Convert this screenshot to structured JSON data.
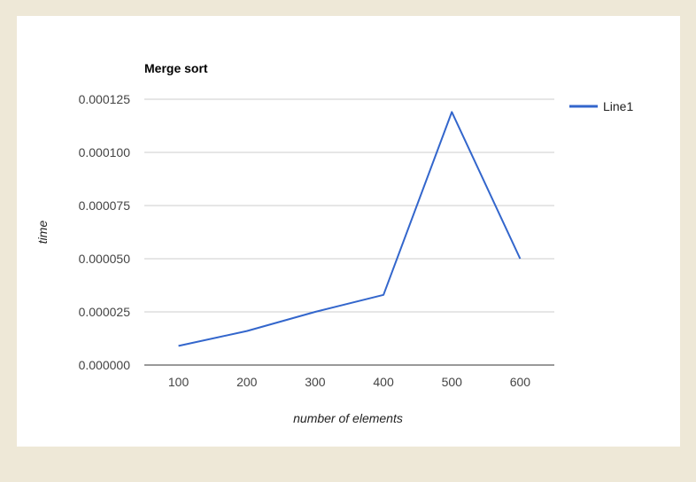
{
  "colors": {
    "background": "#eee8d7",
    "card": "#ffffff",
    "series": "#3366cc",
    "grid": "#cccccc",
    "baseline": "#333333"
  },
  "chart_data": {
    "type": "line",
    "title": "Merge sort",
    "xlabel": "number of elements",
    "ylabel": "time",
    "categories": [
      "100",
      "200",
      "300",
      "400",
      "500",
      "600"
    ],
    "series": [
      {
        "name": "Line1",
        "values": [
          9e-06,
          1.6e-05,
          2.5e-05,
          3.3e-05,
          0.000119,
          5e-05
        ]
      }
    ],
    "ylim": [
      0,
      0.000125
    ],
    "yticks": [
      "0.000000",
      "0.000025",
      "0.000050",
      "0.000075",
      "0.000100",
      "0.000125"
    ],
    "grid": true,
    "legend": "right"
  }
}
